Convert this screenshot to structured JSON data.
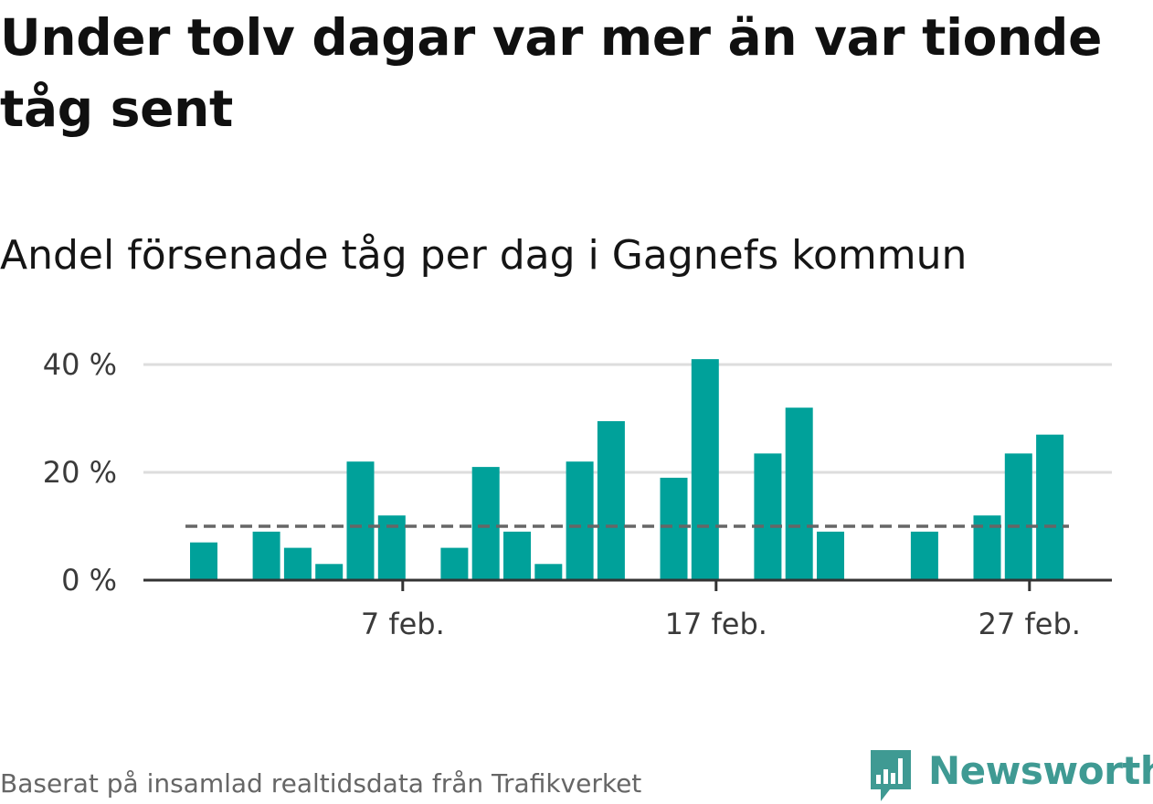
{
  "title": "Under tolv dagar var mer än var tionde tåg sent",
  "subtitle": "Andel försenade tåg per dag i Gagnefs kommun",
  "source": "Baserat på insamlad realtidsdata från Trafikverket",
  "logo": {
    "text": "Newsworthy",
    "color": "#3f9a93"
  },
  "colors": {
    "bar": "#00a19a",
    "reference_line": "#666666",
    "grid": "#dddddd",
    "axis": "#333333"
  },
  "chart_data": {
    "type": "bar",
    "x_unit": "day of February",
    "x_ticks": [
      {
        "day": 7,
        "label": "7 feb."
      },
      {
        "day": 17,
        "label": "17 feb."
      },
      {
        "day": 27,
        "label": "27 feb."
      }
    ],
    "y_ticks": [
      {
        "value": 0,
        "label": "0 %"
      },
      {
        "value": 20,
        "label": "20 %"
      },
      {
        "value": 40,
        "label": "40 %"
      }
    ],
    "ylim": [
      0,
      42
    ],
    "xlim": [
      -0.5,
      27.5
    ],
    "reference_line": {
      "value": 10,
      "style": "dashed"
    },
    "grid": true,
    "bars": [
      {
        "day": 0,
        "value": 7
      },
      {
        "day": 1,
        "value": 0
      },
      {
        "day": 2,
        "value": 9
      },
      {
        "day": 3,
        "value": 6
      },
      {
        "day": 4,
        "value": 3
      },
      {
        "day": 5,
        "value": 22
      },
      {
        "day": 6,
        "value": 12
      },
      {
        "day": 7,
        "value": 0
      },
      {
        "day": 8,
        "value": 6
      },
      {
        "day": 9,
        "value": 21
      },
      {
        "day": 10,
        "value": 9
      },
      {
        "day": 11,
        "value": 3
      },
      {
        "day": 12,
        "value": 22
      },
      {
        "day": 13,
        "value": 29.5
      },
      {
        "day": 14,
        "value": 0
      },
      {
        "day": 15,
        "value": 19
      },
      {
        "day": 16,
        "value": 41
      },
      {
        "day": 17,
        "value": 0
      },
      {
        "day": 18,
        "value": 23.5
      },
      {
        "day": 19,
        "value": 32
      },
      {
        "day": 20,
        "value": 9
      },
      {
        "day": 21,
        "value": 0
      },
      {
        "day": 22,
        "value": 0
      },
      {
        "day": 23,
        "value": 9
      },
      {
        "day": 24,
        "value": 0
      },
      {
        "day": 25,
        "value": 12
      },
      {
        "day": 26,
        "value": 23.5
      },
      {
        "day": 27,
        "value": 27
      }
    ]
  }
}
